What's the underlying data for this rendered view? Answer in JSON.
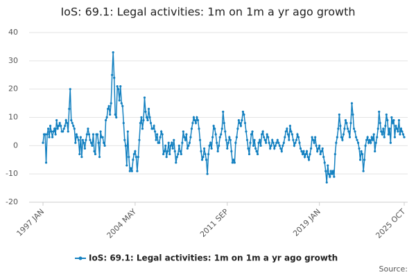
{
  "chart_data": {
    "type": "line",
    "title": "IoS: 69.1: Legal activities: 1m on 1m a yr ago growth",
    "source_label": "Source:",
    "categories": [
      "1997 JAN",
      null,
      null,
      null,
      null,
      null,
      null,
      null,
      null,
      null,
      null,
      null,
      null,
      null,
      null,
      null,
      null,
      null,
      null,
      null,
      null,
      null,
      null,
      null,
      null,
      null,
      null,
      null,
      null,
      null,
      null,
      null,
      null,
      null,
      null,
      null,
      null,
      null,
      null,
      null,
      null,
      null,
      null,
      null,
      null,
      null,
      null,
      null,
      null,
      null,
      null,
      null,
      null,
      null,
      null,
      null,
      null,
      null,
      null,
      null,
      null,
      null,
      null,
      null,
      null,
      null,
      null,
      null,
      null,
      null,
      null,
      null,
      null,
      null,
      null,
      null,
      null,
      null,
      null,
      null,
      null,
      null,
      null,
      null,
      null,
      null,
      null,
      null,
      "2004 MAY",
      null,
      null,
      null,
      null,
      null,
      null,
      null,
      null,
      null,
      null,
      null,
      null,
      null,
      null,
      null,
      null,
      null,
      null,
      null,
      null,
      null,
      null,
      null,
      null,
      null,
      null,
      null,
      null,
      null,
      null,
      null,
      null,
      null,
      null,
      null,
      null,
      null,
      null,
      null,
      null,
      null,
      null,
      null,
      null,
      null,
      null,
      null,
      null,
      null,
      null,
      null,
      null,
      null,
      null,
      null,
      null,
      null,
      null,
      null,
      null,
      null,
      null,
      null,
      null,
      null,
      null,
      null,
      null,
      null,
      null,
      null,
      null,
      null,
      null,
      null,
      null,
      null,
      null,
      null,
      null,
      null,
      null,
      null,
      null,
      null,
      null,
      null,
      "2011 SEP",
      null,
      null,
      null,
      null,
      null,
      null,
      null,
      null,
      null,
      null,
      null,
      null,
      null,
      null,
      null,
      null,
      null,
      null,
      null,
      null,
      null,
      null,
      null,
      null,
      null,
      null,
      null,
      null,
      null,
      null,
      null,
      null,
      null,
      null,
      null,
      null,
      null,
      null,
      null,
      null,
      null,
      null,
      null,
      null,
      null,
      null,
      null,
      null,
      null,
      null,
      null,
      null,
      null,
      null,
      null,
      null,
      null,
      null,
      null,
      null,
      null,
      null,
      null,
      null,
      null,
      null,
      null,
      null,
      null,
      null,
      null,
      null,
      null,
      null,
      null,
      null,
      null,
      null,
      null,
      null,
      null,
      null,
      null,
      null,
      null,
      null,
      null,
      "2019 JAN",
      null,
      null,
      null,
      null,
      null,
      null,
      null,
      null,
      null,
      null,
      null,
      null,
      null,
      null,
      null,
      null,
      null,
      null,
      null,
      null,
      null,
      null,
      null,
      null,
      null,
      null,
      null,
      null,
      null,
      null,
      null,
      null,
      null,
      null,
      null,
      null,
      null,
      null,
      null,
      null,
      null,
      null,
      null,
      null,
      null,
      null,
      null,
      null,
      null,
      null,
      null,
      null,
      null,
      null,
      null,
      null,
      null,
      null,
      null,
      null,
      null,
      null,
      null,
      null,
      null,
      null,
      null,
      null,
      null,
      null,
      null,
      null,
      null,
      null,
      null,
      null,
      null,
      null,
      null,
      null,
      "2025 OCT"
    ],
    "series": [
      {
        "name": "IoS: 69.1: Legal activities: 1m on 1m a yr ago growth",
        "color": "#1380c0",
        "values": [
          1,
          4,
          4,
          -6,
          4,
          6,
          3,
          7,
          5,
          3,
          5,
          6,
          4,
          9,
          6,
          7,
          8,
          7,
          5,
          5,
          6,
          7,
          9,
          8,
          5,
          13,
          20,
          9,
          8,
          7,
          6,
          1,
          4,
          3,
          2,
          -3,
          3,
          -4,
          2,
          1,
          -1,
          2,
          4,
          6,
          4,
          2,
          1,
          0,
          4,
          -2,
          -3,
          4,
          4,
          1,
          -4,
          5,
          3,
          3,
          1,
          0,
          9,
          10,
          13,
          14,
          11,
          15,
          25,
          33,
          24,
          11,
          10,
          21,
          20,
          16,
          21,
          15,
          14,
          8,
          2,
          0,
          -7,
          5,
          -4,
          -9,
          -8,
          -9,
          -5,
          -3,
          -2,
          -4,
          -9,
          -4,
          2,
          8,
          10,
          6,
          9,
          17,
          12,
          10,
          9,
          13,
          10,
          8,
          6,
          6,
          7,
          5,
          2,
          4,
          1,
          1,
          3,
          5,
          4,
          -3,
          -2,
          0,
          -4,
          -2,
          1,
          -3,
          0,
          1,
          -1,
          2,
          -2,
          -6,
          -4,
          -3,
          0,
          -2,
          -3,
          1,
          5,
          3,
          2,
          4,
          -1,
          0,
          1,
          3,
          6,
          8,
          10,
          9,
          8,
          10,
          9,
          6,
          2,
          -2,
          -5,
          -4,
          -1,
          -3,
          -5,
          -10,
          -3,
          0,
          1,
          -1,
          3,
          7,
          6,
          4,
          1,
          -2,
          0,
          3,
          4,
          6,
          12,
          8,
          5,
          2,
          -1,
          1,
          3,
          2,
          -2,
          -6,
          -5,
          -6,
          1,
          3,
          6,
          9,
          8,
          7,
          9,
          12,
          11,
          8,
          5,
          2,
          -1,
          -3,
          1,
          4,
          5,
          0,
          2,
          -1,
          -2,
          -3,
          1,
          2,
          0,
          4,
          5,
          3,
          2,
          1,
          4,
          3,
          1,
          -1,
          0,
          2,
          1,
          -1,
          0,
          1,
          2,
          1,
          0,
          -1,
          -2,
          0,
          1,
          3,
          5,
          6,
          4,
          2,
          7,
          5,
          4,
          2,
          0,
          1,
          2,
          4,
          3,
          1,
          -1,
          -2,
          -3,
          -2,
          -4,
          -3,
          -2,
          -4,
          -5,
          -3,
          -1,
          3,
          2,
          1,
          3,
          0,
          -2,
          -1,
          0,
          -3,
          -2,
          -1,
          -4,
          -6,
          -9,
          -13,
          -7,
          -10,
          -11,
          -9,
          -10,
          -9,
          -11,
          -3,
          1,
          3,
          6,
          11,
          7,
          3,
          2,
          4,
          6,
          9,
          8,
          6,
          5,
          3,
          8,
          15,
          11,
          6,
          5,
          3,
          2,
          1,
          -1,
          -5,
          -2,
          -3,
          -9,
          -5,
          0,
          2,
          3,
          1,
          2,
          1,
          3,
          2,
          4,
          -2,
          1,
          3,
          6,
          12,
          8,
          5,
          4,
          6,
          3,
          7,
          11,
          9,
          4,
          6,
          1,
          10,
          8,
          9,
          3,
          7,
          6,
          5,
          9,
          4,
          6,
          5,
          4,
          3
        ]
      }
    ],
    "ylim": [
      -20,
      40
    ],
    "yticks": [
      -20,
      -10,
      0,
      10,
      20,
      30,
      40
    ],
    "grid": true
  }
}
